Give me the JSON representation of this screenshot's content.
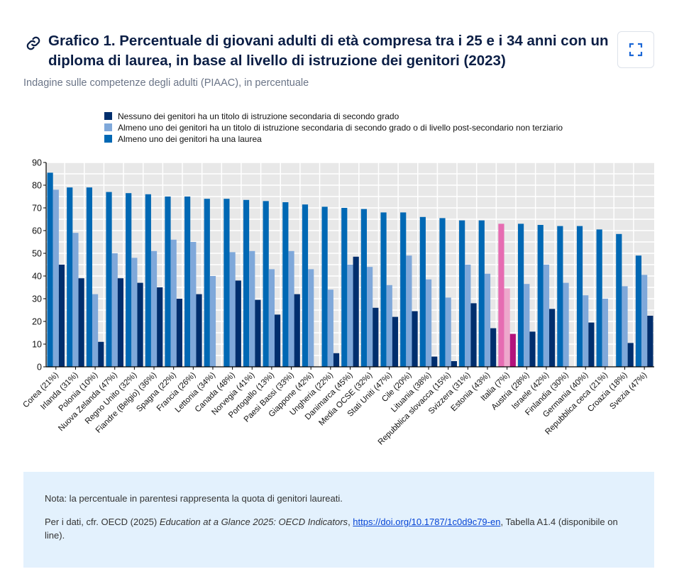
{
  "header": {
    "title": "Grafico 1. Percentuale di giovani adulti di età compresa tra i 25 e i 34 anni con un diploma di laurea, in base al livello di istruzione dei genitori (2023)",
    "subtitle": "Indagine sulle competenze degli adulti (PIAAC), in percentuale",
    "link_icon": "link-icon",
    "expand_icon": "expand-icon"
  },
  "chart_data": {
    "type": "bar",
    "title": "Grafico 1. Percentuale di giovani adulti di età compresa tra i 25 e i 34 anni con un diploma di laurea, in base al livello di istruzione dei genitori (2023)",
    "xlabel": "",
    "ylabel": "",
    "ylim": [
      0,
      90
    ],
    "yticks": [
      0,
      10,
      20,
      30,
      40,
      50,
      60,
      70,
      80,
      90
    ],
    "grid": true,
    "legend_position": "top",
    "highlight_category": "Italia (7%)",
    "categories": [
      "Corea (21%)",
      "Irlanda (31%)",
      "Polonia (10%)",
      "Nuova Zelanda (47%)",
      "Regno Unito (32%)",
      "Fiandre (Belgio) (36%)",
      "Spagna (22%)",
      "Francia (26%)",
      "Lettonia (34%)",
      "Canada (48%)",
      "Norvegia (41%)",
      "Portogallo (13%)",
      "Paesi Bassi (33%)",
      "Giappone (42%)",
      "Ungheria (22%)",
      "Danimarca (45%)",
      "Media OCSE (32%)",
      "Stati Uniti (47%)",
      "Cile (20%)",
      "Lituania (38%)",
      "Repubblica slovacca (15%)",
      "Svizzera (31%)",
      "Estonia (43%)",
      "Italia (7%)",
      "Austria (28%)",
      "Israele (42%)",
      "Finlandia (30%)",
      "Germania (40%)",
      "Repubblica ceca (21%)",
      "Croazia (18%)",
      "Svezia (47%)"
    ],
    "series": [
      {
        "name": "Almeno uno dei genitori ha una laurea",
        "color": "#0068b4",
        "highlight_color": "#e66cb2",
        "values": [
          85.5,
          79,
          79,
          77,
          76.5,
          76,
          75,
          75,
          74,
          74,
          73.5,
          73,
          72.5,
          71.5,
          70.5,
          70,
          69.5,
          68,
          68,
          66,
          65.5,
          64.5,
          64.5,
          63,
          63,
          62.5,
          62,
          62,
          60.5,
          58.5,
          49
        ]
      },
      {
        "name": "Almeno uno dei genitori ha un titolo di istruzione secondaria di secondo grado o di livello post-secondario non terziario",
        "color": "#7fa8da",
        "highlight_color": "#eea8cc",
        "values": [
          78,
          59,
          32,
          50,
          48,
          51,
          56,
          55,
          40,
          50.5,
          51,
          43,
          51,
          43,
          34,
          45,
          44,
          36,
          49,
          38.5,
          30.5,
          45,
          41,
          34.5,
          36.5,
          45,
          37,
          31.5,
          30,
          35.5,
          40.5
        ]
      },
      {
        "name": "Nessuno dei genitori ha un titolo di istruzione secondaria di secondo grado",
        "color": "#002e6d",
        "highlight_color": "#b3127c",
        "values": [
          45,
          39,
          11,
          39,
          37,
          35,
          30,
          32,
          null,
          38,
          29.5,
          23,
          32,
          null,
          6,
          48.5,
          26,
          22,
          24.5,
          4.5,
          2.5,
          28,
          17,
          14.5,
          15.5,
          25.5,
          null,
          19.5,
          null,
          10.5,
          22.5
        ]
      }
    ],
    "legend_order": [
      2,
      1,
      0
    ]
  },
  "note": {
    "line1": "Nota: la percentuale in parentesi rappresenta la quota di genitori laureati.",
    "source_prefix": "Per i dati, cfr. OECD (2025) ",
    "source_title": "Education at a Glance 2025: OECD Indicators",
    "source_sep": ", ",
    "source_link": "https://doi.org/10.1787/1c0d9c79-en",
    "source_suffix": ", Tabella A1.4 (disponibile on line)."
  }
}
